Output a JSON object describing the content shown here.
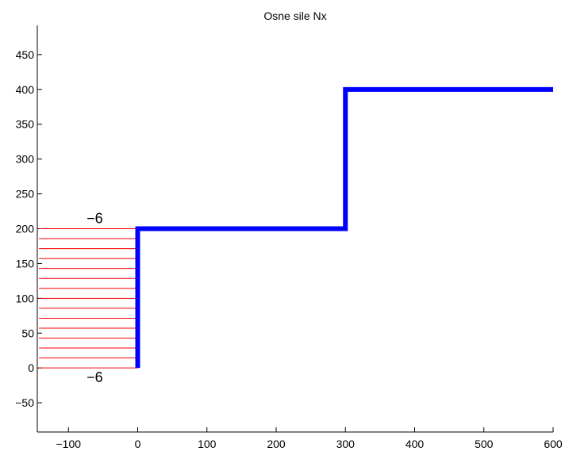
{
  "chart_data": {
    "type": "line",
    "title": "Osne sile Nx",
    "xlabel": "",
    "ylabel": "",
    "xlim": [
      -145,
      600
    ],
    "ylim": [
      -92,
      492
    ],
    "x_ticks": [
      -100,
      0,
      100,
      200,
      300,
      400,
      500,
      600
    ],
    "y_ticks": [
      -50,
      0,
      50,
      100,
      150,
      200,
      250,
      300,
      350,
      400,
      450
    ],
    "grid": false,
    "series": [
      {
        "color": "#0000ff",
        "x": [
          0,
          0,
          300,
          300,
          600
        ],
        "y": [
          0,
          200,
          200,
          400,
          400
        ]
      }
    ],
    "force_diagram": {
      "color": "#ff0000",
      "value": -6,
      "x_extent": [
        -145,
        0
      ],
      "y_levels": [
        0,
        14.3,
        28.6,
        42.9,
        57.1,
        71.4,
        85.7,
        100,
        114.3,
        128.6,
        142.9,
        157.1,
        171.4,
        185.7,
        200
      ]
    },
    "annotations": [
      {
        "text": "−6",
        "x": -62,
        "y": 208
      },
      {
        "text": "−6",
        "x": -62,
        "y": -20
      }
    ]
  }
}
